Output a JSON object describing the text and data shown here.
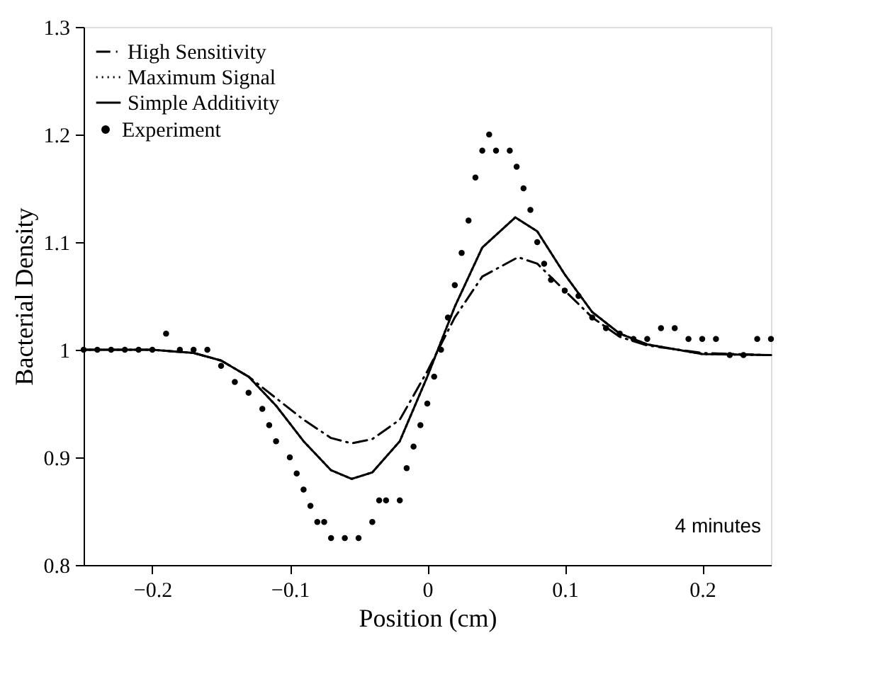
{
  "chart_data": {
    "type": "line",
    "xlabel": "Position (cm)",
    "ylabel": "Bacterial Density",
    "xlim": [
      -0.25,
      0.25
    ],
    "ylim": [
      0.8,
      1.3
    ],
    "xticks": [
      -0.2,
      -0.1,
      0,
      0.1,
      0.2
    ],
    "yticks": [
      0.8,
      0.9,
      1,
      1.1,
      1.2,
      1.3
    ],
    "legend": "top left",
    "grid": false,
    "annotations": [
      "4 minutes"
    ],
    "series": [
      {
        "name": "High Sensitivity",
        "color": "#000000",
        "type": "line",
        "line_style": "dashdot",
        "x": [
          -0.25,
          -0.2,
          -0.17,
          -0.15,
          -0.13,
          -0.11,
          -0.09,
          -0.07,
          -0.055,
          -0.04,
          -0.02,
          0,
          0.02,
          0.04,
          0.066,
          0.08,
          0.1,
          0.12,
          0.14,
          0.16,
          0.2,
          0.25
        ],
        "values": [
          1.0,
          1.0,
          0.997,
          0.99,
          0.975,
          0.955,
          0.935,
          0.918,
          0.913,
          0.917,
          0.935,
          0.98,
          1.03,
          1.068,
          1.086,
          1.08,
          1.055,
          1.03,
          1.012,
          1.004,
          0.997,
          0.995
        ]
      },
      {
        "name": "Maximum Signal",
        "color": "#000000",
        "type": "line",
        "line_style": "dotted",
        "x": [
          -0.25,
          -0.2,
          -0.17,
          -0.15,
          -0.13,
          -0.11,
          -0.09,
          -0.07,
          -0.055,
          -0.04,
          -0.02,
          0,
          0.02,
          0.04,
          0.064,
          0.08,
          0.1,
          0.12,
          0.14,
          0.16,
          0.2,
          0.25
        ],
        "values": [
          1.0,
          1.0,
          0.997,
          0.99,
          0.975,
          0.948,
          0.915,
          0.888,
          0.88,
          0.886,
          0.915,
          0.975,
          1.04,
          1.095,
          1.123,
          1.11,
          1.07,
          1.035,
          1.015,
          1.005,
          0.996,
          0.995
        ]
      },
      {
        "name": "Simple Additivity",
        "color": "#000000",
        "type": "line",
        "line_style": "solid",
        "x": [
          -0.25,
          -0.2,
          -0.17,
          -0.15,
          -0.13,
          -0.11,
          -0.09,
          -0.07,
          -0.055,
          -0.04,
          -0.02,
          0,
          0.02,
          0.04,
          0.064,
          0.08,
          0.1,
          0.12,
          0.14,
          0.16,
          0.2,
          0.25
        ],
        "values": [
          1.0,
          1.0,
          0.997,
          0.99,
          0.975,
          0.948,
          0.915,
          0.888,
          0.88,
          0.886,
          0.915,
          0.975,
          1.04,
          1.095,
          1.123,
          1.11,
          1.07,
          1.035,
          1.015,
          1.005,
          0.996,
          0.995
        ]
      },
      {
        "name": "Experiment",
        "color": "#000000",
        "type": "scatter",
        "marker": "circle",
        "x": [
          -0.25,
          -0.24,
          -0.23,
          -0.22,
          -0.21,
          -0.2,
          -0.19,
          -0.18,
          -0.17,
          -0.16,
          -0.15,
          -0.14,
          -0.13,
          -0.12,
          -0.115,
          -0.11,
          -0.1,
          -0.095,
          -0.09,
          -0.085,
          -0.08,
          -0.075,
          -0.07,
          -0.06,
          -0.05,
          -0.04,
          -0.035,
          -0.03,
          -0.02,
          -0.015,
          -0.01,
          -0.005,
          0,
          0.005,
          0.01,
          0.015,
          0.02,
          0.025,
          0.03,
          0.035,
          0.04,
          0.045,
          0.05,
          0.06,
          0.065,
          0.07,
          0.075,
          0.08,
          0.085,
          0.09,
          0.1,
          0.11,
          0.12,
          0.13,
          0.14,
          0.15,
          0.16,
          0.17,
          0.18,
          0.19,
          0.2,
          0.21,
          0.22,
          0.23,
          0.24,
          0.25
        ],
        "values": [
          1.0,
          1.0,
          1.0,
          1.0,
          1.0,
          1.0,
          1.015,
          1.0,
          1.0,
          1.0,
          0.985,
          0.97,
          0.96,
          0.945,
          0.93,
          0.915,
          0.9,
          0.885,
          0.87,
          0.855,
          0.84,
          0.84,
          0.825,
          0.825,
          0.825,
          0.84,
          0.86,
          0.86,
          0.86,
          0.89,
          0.91,
          0.93,
          0.95,
          0.975,
          1.0,
          1.03,
          1.06,
          1.09,
          1.12,
          1.16,
          1.185,
          1.2,
          1.185,
          1.185,
          1.17,
          1.15,
          1.13,
          1.1,
          1.08,
          1.065,
          1.055,
          1.05,
          1.03,
          1.02,
          1.015,
          1.01,
          1.01,
          1.02,
          1.02,
          1.01,
          1.01,
          1.01,
          0.995,
          0.995,
          1.01,
          1.01
        ]
      }
    ]
  }
}
